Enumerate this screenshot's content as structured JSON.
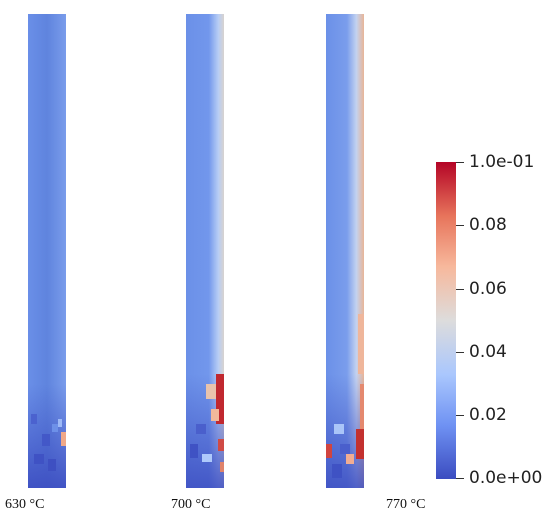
{
  "panels": [
    {
      "label": "630 °C"
    },
    {
      "label": "700 °C"
    },
    {
      "label": "770 °C"
    }
  ],
  "colorbar": {
    "min": 0,
    "max": 0.1,
    "colors": [
      "#3b4cc0",
      "#6f92f3",
      "#aac7fd",
      "#dddcdc",
      "#f7b89c",
      "#e7745b",
      "#b40426"
    ],
    "ticks": [
      {
        "value": 0.1,
        "label": "1.0e-01"
      },
      {
        "value": 0.08,
        "label": "0.08"
      },
      {
        "value": 0.06,
        "label": "0.06"
      },
      {
        "value": 0.04,
        "label": "0.04"
      },
      {
        "value": 0.02,
        "label": "0.02"
      },
      {
        "value": 0.0,
        "label": "0.0e+00"
      }
    ]
  }
}
